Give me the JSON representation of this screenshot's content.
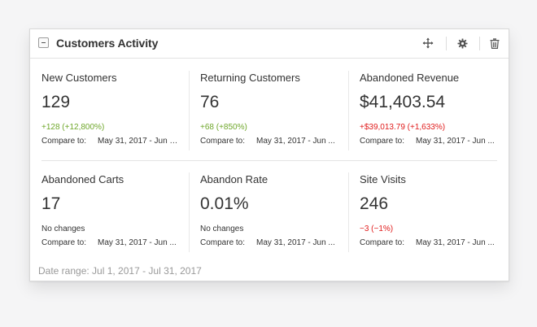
{
  "widget": {
    "title": "Customers Activity",
    "icons": [
      "collapse-icon",
      "move-icon",
      "gear-icon",
      "trash-icon"
    ],
    "date_range": "Date range: Jul 1, 2017 - Jul 31, 2017"
  },
  "colors": {
    "positive": "#6fa72b",
    "negative": "#e01b1b"
  },
  "compare_label": "Compare to:",
  "metrics": [
    {
      "label": "New Customers",
      "value": "129",
      "change": "+128 (+12,800%)",
      "change_type": "positive",
      "compare_range": "May 31, 2017 - Jun 3..."
    },
    {
      "label": "Returning Customers",
      "value": "76",
      "change": "+68 (+850%)",
      "change_type": "positive",
      "compare_range": "May 31, 2017 - Jun ..."
    },
    {
      "label": "Abandoned Revenue",
      "value": "$41,403.54",
      "change": "+$39,013.79 (+1,633%)",
      "change_type": "negative",
      "compare_range": "May 31, 2017 - Jun ..."
    },
    {
      "label": "Abandoned Carts",
      "value": "17",
      "change": "No changes",
      "change_type": "neutral",
      "compare_range": "May 31, 2017 - Jun ..."
    },
    {
      "label": "Abandon Rate",
      "value": "0.01%",
      "change": "No changes",
      "change_type": "neutral",
      "compare_range": "May 31, 2017 - Jun ..."
    },
    {
      "label": "Site Visits",
      "value": "246",
      "change": "−3 (−1%)",
      "change_type": "negative",
      "compare_range": "May 31, 2017 - Jun ..."
    }
  ]
}
